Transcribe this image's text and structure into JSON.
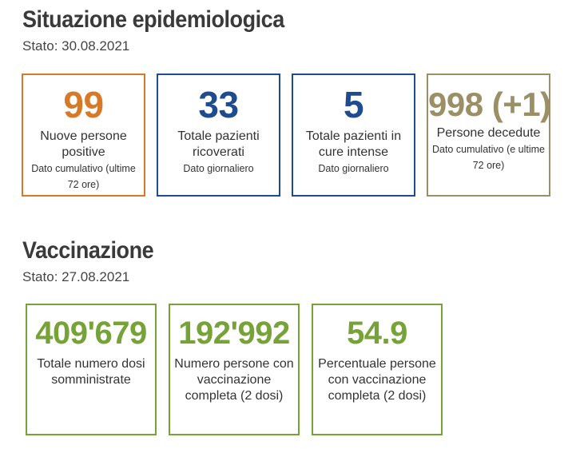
{
  "colors": {
    "orange": "#d67a2a",
    "blue": "#1f4b8f",
    "olive": "#9a8f65",
    "green": "#77a237"
  },
  "epidemiological": {
    "title": "Situazione epidemiologica",
    "date": "Stato: 30.08.2021",
    "cards": [
      {
        "value": "99",
        "label": "Nuove persone positive",
        "note": "Dato cumulativo (ultime 72 ore)",
        "color": "#d67a2a"
      },
      {
        "value": "33",
        "label": "Totale pazienti ricoverati",
        "note": "Dato giornaliero",
        "color": "#1f4b8f"
      },
      {
        "value": "5",
        "label": "Totale pazienti in cure intense",
        "note": "Dato giornaliero",
        "color": "#1f4b8f"
      },
      {
        "value": "998 (+1)",
        "label": "Persone decedute",
        "note": "Dato cumulativo (e ultime 72 ore)",
        "color": "#9a8f65"
      }
    ]
  },
  "vaccination": {
    "title": "Vaccinazione",
    "date": "Stato: 27.08.2021",
    "cards": [
      {
        "value": "409'679",
        "label": "Totale numero dosi somministrate",
        "color": "#77a237"
      },
      {
        "value": "192'992",
        "label": "Numero persone con vaccinazione completa (2 dosi)",
        "color": "#77a237"
      },
      {
        "value": "54.9",
        "label": "Percentuale persone con vaccinazione completa (2 dosi)",
        "color": "#77a237"
      }
    ]
  }
}
